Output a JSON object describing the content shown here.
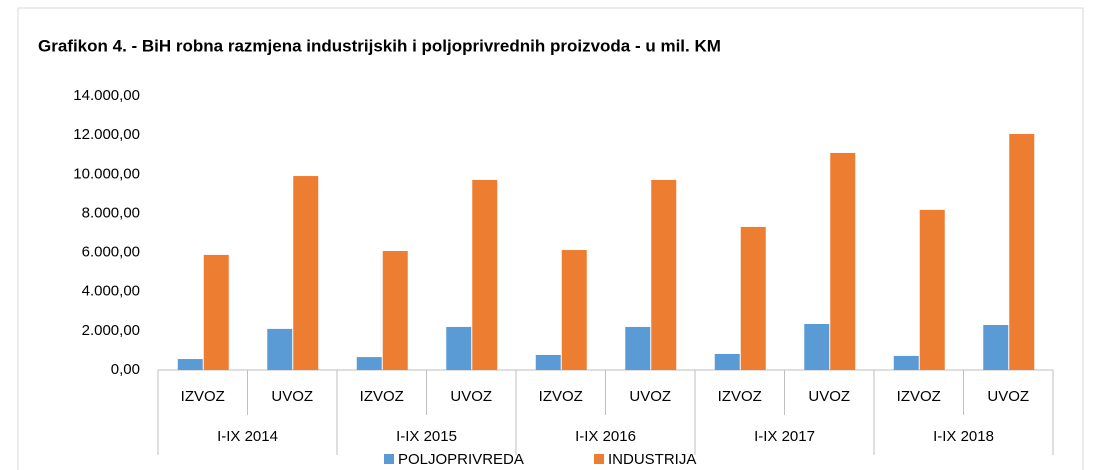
{
  "chart_data": {
    "type": "bar",
    "title": "Grafikon 4. - BiH robna razmjena industrijskih i poljoprivrednih proizvoda - u mil. KM",
    "categories": [
      "IZVOZ",
      "UVOZ",
      "IZVOZ",
      "UVOZ",
      "IZVOZ",
      "UVOZ",
      "IZVOZ",
      "UVOZ",
      "IZVOZ",
      "UVOZ"
    ],
    "groups": [
      "I-IX 2014",
      "I-IX 2015",
      "I-IX 2016",
      "I-IX 2017",
      "I-IX 2018"
    ],
    "series": [
      {
        "name": "POLJOPRIVREDA",
        "color": "#5b9bd5",
        "values": [
          560,
          2100,
          660,
          2200,
          770,
          2200,
          820,
          2350,
          720,
          2300
        ]
      },
      {
        "name": "INDUSTRIJA",
        "color": "#ed7d31",
        "values": [
          5880,
          9910,
          6080,
          9710,
          6130,
          9710,
          7310,
          11090,
          8180,
          12060
        ]
      }
    ],
    "ylim": [
      0,
      14000
    ],
    "yticks": [
      {
        "value": 0,
        "label": "0,00"
      },
      {
        "value": 2000,
        "label": "2.000,00"
      },
      {
        "value": 4000,
        "label": "4.000,00"
      },
      {
        "value": 6000,
        "label": "6.000,00"
      },
      {
        "value": 8000,
        "label": "8.000,00"
      },
      {
        "value": 10000,
        "label": "10.000,00"
      },
      {
        "value": 12000,
        "label": "12.000,00"
      },
      {
        "value": 14000,
        "label": "14.000,00"
      }
    ],
    "grid": false,
    "legend": "bottom"
  }
}
